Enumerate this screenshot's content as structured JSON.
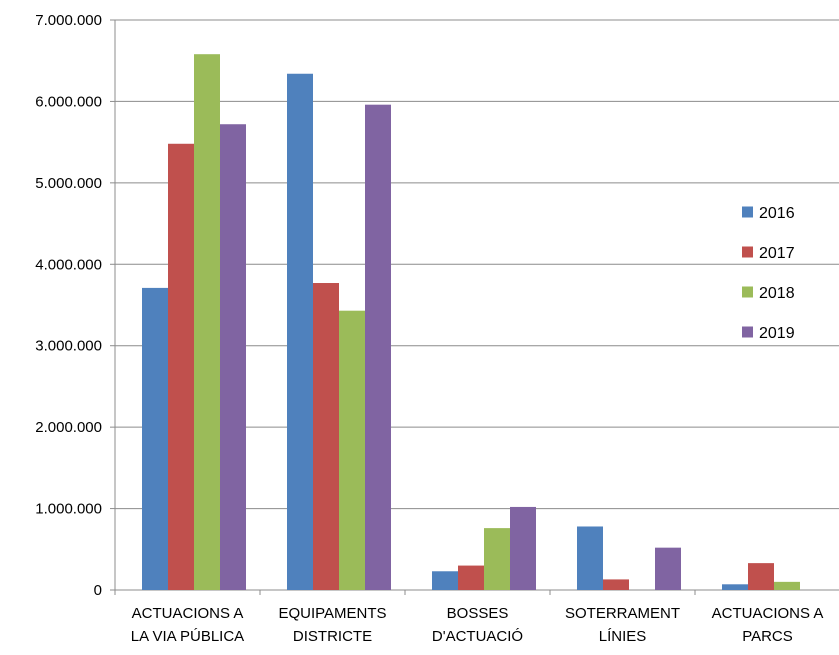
{
  "chart_data": {
    "type": "bar",
    "title": "",
    "xlabel": "",
    "ylabel": "",
    "categories": [
      [
        "ACTUACIONS A",
        "LA VIA PÚBLICA"
      ],
      [
        "EQUIPAMENTS",
        "DISTRICTE"
      ],
      [
        "BOSSES",
        "D'ACTUACIÓ"
      ],
      [
        "SOTERRAMENT",
        "LÍNIES"
      ],
      [
        "ACTUACIONS A",
        "PARCS"
      ]
    ],
    "series": [
      {
        "name": "2016",
        "color": "#4F81BD",
        "values": [
          3710000,
          6340000,
          230000,
          780000,
          70000
        ]
      },
      {
        "name": "2017",
        "color": "#C0504D",
        "values": [
          5480000,
          3770000,
          300000,
          130000,
          330000
        ]
      },
      {
        "name": "2018",
        "color": "#9BBB59",
        "values": [
          6580000,
          3430000,
          760000,
          0,
          100000
        ]
      },
      {
        "name": "2019",
        "color": "#8064A2",
        "values": [
          5720000,
          5960000,
          1020000,
          520000,
          0
        ]
      }
    ],
    "ylim": [
      0,
      7000000
    ],
    "yticks": [
      0,
      1000000,
      2000000,
      3000000,
      4000000,
      5000000,
      6000000,
      7000000
    ],
    "ytick_labels": [
      "0",
      "1.000.000",
      "2.000.000",
      "3.000.000",
      "4.000.000",
      "5.000.000",
      "6.000.000",
      "7.000.000"
    ],
    "grid": true,
    "legend_position": "right"
  }
}
